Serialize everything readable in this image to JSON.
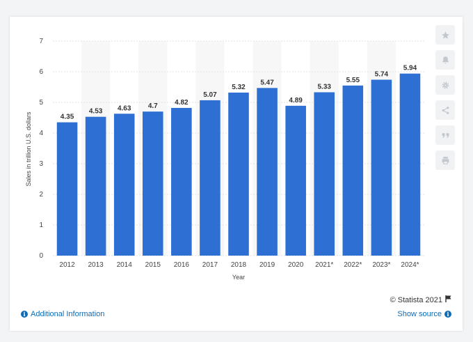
{
  "chart_data": {
    "type": "bar",
    "categories": [
      "2012",
      "2013",
      "2014",
      "2015",
      "2016",
      "2017",
      "2018",
      "2019",
      "2020",
      "2021*",
      "2022*",
      "2023*",
      "2024*"
    ],
    "values": [
      4.35,
      4.53,
      4.63,
      4.7,
      4.82,
      5.07,
      5.32,
      5.47,
      4.89,
      5.33,
      5.55,
      5.74,
      5.94
    ],
    "value_labels": [
      "4.35",
      "4.53",
      "4.63",
      "4.7",
      "4.82",
      "5.07",
      "5.32",
      "5.47",
      "4.89",
      "5.33",
      "5.55",
      "5.74",
      "5.94"
    ],
    "title": "",
    "xlabel": "Year",
    "ylabel": "Sales in trillion U.S. dollars",
    "ylim": [
      0,
      7
    ],
    "yticks": [
      "0",
      "1",
      "2",
      "3",
      "4",
      "5",
      "6",
      "7"
    ],
    "grid": true,
    "bar_color": "#2d6fd3",
    "alt_band_color": "#f7f7f8"
  },
  "toolbar": {
    "icons": [
      "star-icon",
      "bell-icon",
      "gear-icon",
      "share-icon",
      "quote-icon",
      "print-icon"
    ]
  },
  "footer": {
    "copyright": "© Statista 2021",
    "additional_info": "Additional Information",
    "show_source": "Show source"
  }
}
